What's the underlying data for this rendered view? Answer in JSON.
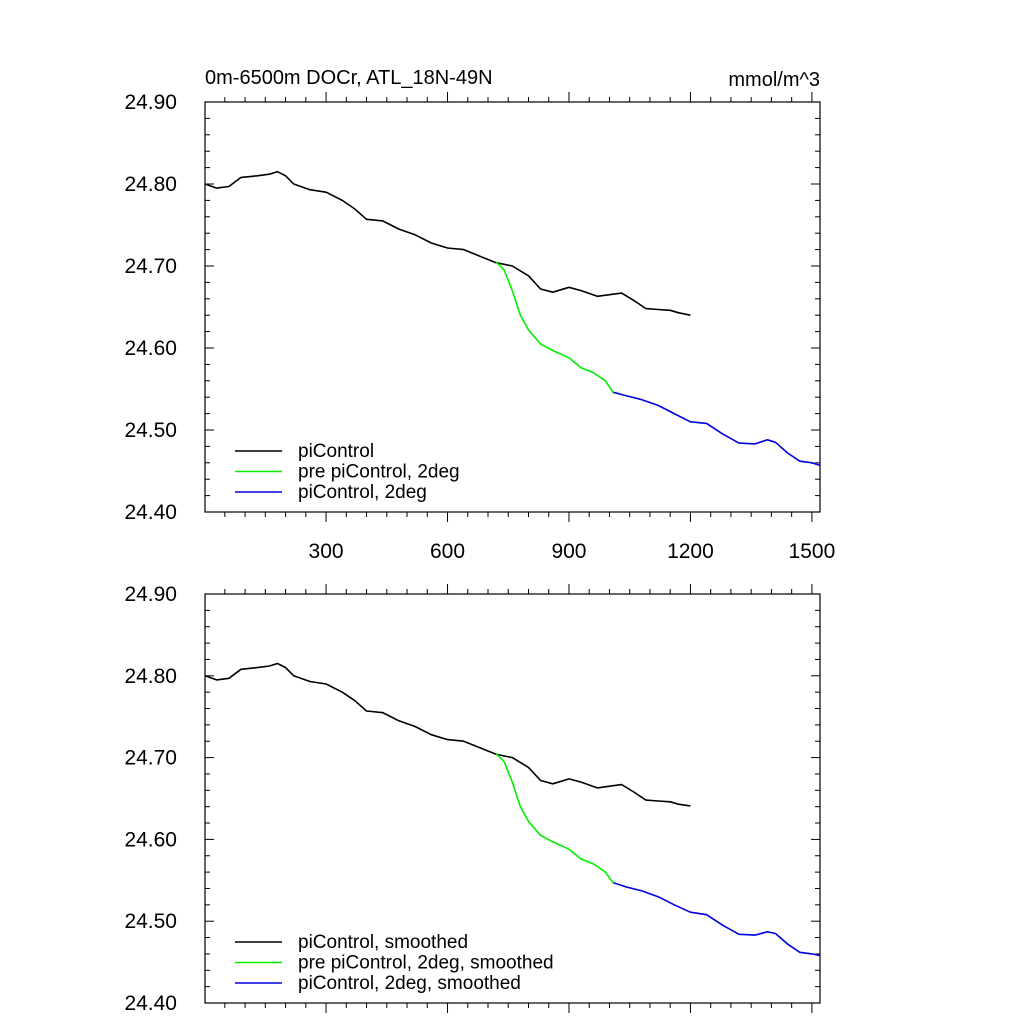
{
  "header": {
    "title": "0m-6500m DOCr, ATL_18N-49N",
    "units": "mmol/m^3"
  },
  "colors": {
    "piControl": "#000000",
    "pre_piControl_2deg": "#00ee00",
    "piControl_2deg": "#0000dd"
  },
  "chart_data": [
    {
      "type": "line",
      "title": "0m-6500m DOCr, ATL_18N-49N",
      "units_label": "mmol/m^3",
      "xlim": [
        1,
        1520
      ],
      "ylim": [
        24.4,
        24.9
      ],
      "x_ticks": [
        300,
        600,
        900,
        1200,
        1500
      ],
      "x_tick_labels": [
        "300",
        "600",
        "900",
        "1200",
        "1500"
      ],
      "y_ticks": [
        24.4,
        24.5,
        24.6,
        24.7,
        24.8,
        24.9
      ],
      "y_tick_labels": [
        "24.40",
        "24.50",
        "24.60",
        "24.70",
        "24.80",
        "24.90"
      ],
      "legend": {
        "placement": "bottom-left"
      },
      "series": [
        {
          "name": "piControl",
          "color_key": "piControl",
          "points": [
            [
              1,
              24.8
            ],
            [
              30,
              24.795
            ],
            [
              60,
              24.797
            ],
            [
              90,
              24.808
            ],
            [
              130,
              24.81
            ],
            [
              160,
              24.812
            ],
            [
              180,
              24.815
            ],
            [
              200,
              24.81
            ],
            [
              220,
              24.8
            ],
            [
              260,
              24.793
            ],
            [
              300,
              24.79
            ],
            [
              340,
              24.78
            ],
            [
              370,
              24.77
            ],
            [
              400,
              24.757
            ],
            [
              440,
              24.755
            ],
            [
              480,
              24.745
            ],
            [
              520,
              24.738
            ],
            [
              560,
              24.728
            ],
            [
              600,
              24.722
            ],
            [
              640,
              24.72
            ],
            [
              680,
              24.712
            ],
            [
              720,
              24.704
            ],
            [
              760,
              24.7
            ],
            [
              800,
              24.688
            ],
            [
              830,
              24.672
            ],
            [
              860,
              24.668
            ],
            [
              900,
              24.674
            ],
            [
              930,
              24.67
            ],
            [
              970,
              24.663
            ],
            [
              1000,
              24.665
            ],
            [
              1030,
              24.667
            ],
            [
              1060,
              24.658
            ],
            [
              1090,
              24.648
            ],
            [
              1120,
              24.647
            ],
            [
              1150,
              24.646
            ],
            [
              1170,
              24.643
            ],
            [
              1200,
              24.64
            ]
          ]
        },
        {
          "name": "pre piControl, 2deg",
          "color_key": "pre_piControl_2deg",
          "points": [
            [
              720,
              24.705
            ],
            [
              740,
              24.695
            ],
            [
              760,
              24.67
            ],
            [
              780,
              24.64
            ],
            [
              800,
              24.622
            ],
            [
              830,
              24.605
            ],
            [
              860,
              24.597
            ],
            [
              900,
              24.588
            ],
            [
              930,
              24.576
            ],
            [
              960,
              24.57
            ],
            [
              990,
              24.56
            ],
            [
              1010,
              24.545
            ]
          ]
        },
        {
          "name": "piControl, 2deg",
          "color_key": "piControl_2deg",
          "points": [
            [
              1010,
              24.546
            ],
            [
              1040,
              24.542
            ],
            [
              1080,
              24.537
            ],
            [
              1120,
              24.53
            ],
            [
              1160,
              24.52
            ],
            [
              1200,
              24.51
            ],
            [
              1240,
              24.508
            ],
            [
              1280,
              24.495
            ],
            [
              1320,
              24.484
            ],
            [
              1360,
              24.483
            ],
            [
              1390,
              24.488
            ],
            [
              1410,
              24.485
            ],
            [
              1440,
              24.472
            ],
            [
              1470,
              24.462
            ],
            [
              1500,
              24.46
            ],
            [
              1520,
              24.457
            ]
          ]
        }
      ]
    },
    {
      "type": "line",
      "title": "",
      "xlim": [
        1,
        1520
      ],
      "ylim": [
        24.4,
        24.9
      ],
      "x_ticks": [
        300,
        600,
        900,
        1200,
        1500
      ],
      "x_tick_labels": [],
      "y_ticks": [
        24.4,
        24.5,
        24.6,
        24.7,
        24.8,
        24.9
      ],
      "y_tick_labels": [
        "24.40",
        "24.50",
        "24.60",
        "24.70",
        "24.80",
        "24.90"
      ],
      "legend": {
        "placement": "bottom-left"
      },
      "series": [
        {
          "name": "piControl, smoothed",
          "color_key": "piControl",
          "points": [
            [
              1,
              24.8
            ],
            [
              30,
              24.795
            ],
            [
              60,
              24.797
            ],
            [
              90,
              24.808
            ],
            [
              130,
              24.81
            ],
            [
              160,
              24.812
            ],
            [
              180,
              24.815
            ],
            [
              200,
              24.81
            ],
            [
              220,
              24.8
            ],
            [
              260,
              24.793
            ],
            [
              300,
              24.79
            ],
            [
              340,
              24.78
            ],
            [
              370,
              24.77
            ],
            [
              400,
              24.757
            ],
            [
              440,
              24.755
            ],
            [
              480,
              24.745
            ],
            [
              520,
              24.738
            ],
            [
              560,
              24.728
            ],
            [
              600,
              24.722
            ],
            [
              640,
              24.72
            ],
            [
              680,
              24.712
            ],
            [
              720,
              24.704
            ],
            [
              760,
              24.7
            ],
            [
              800,
              24.688
            ],
            [
              830,
              24.672
            ],
            [
              860,
              24.668
            ],
            [
              900,
              24.674
            ],
            [
              930,
              24.67
            ],
            [
              970,
              24.663
            ],
            [
              1000,
              24.665
            ],
            [
              1030,
              24.667
            ],
            [
              1060,
              24.658
            ],
            [
              1090,
              24.648
            ],
            [
              1120,
              24.647
            ],
            [
              1150,
              24.646
            ],
            [
              1170,
              24.643
            ],
            [
              1200,
              24.641
            ]
          ]
        },
        {
          "name": "pre piControl, 2deg, smoothed",
          "color_key": "pre_piControl_2deg",
          "points": [
            [
              720,
              24.705
            ],
            [
              740,
              24.695
            ],
            [
              760,
              24.67
            ],
            [
              780,
              24.64
            ],
            [
              800,
              24.622
            ],
            [
              830,
              24.605
            ],
            [
              860,
              24.597
            ],
            [
              900,
              24.588
            ],
            [
              930,
              24.576
            ],
            [
              960,
              24.57
            ],
            [
              990,
              24.56
            ],
            [
              1010,
              24.546
            ]
          ]
        },
        {
          "name": "piControl, 2deg, smoothed",
          "color_key": "piControl_2deg",
          "points": [
            [
              1010,
              24.547
            ],
            [
              1040,
              24.542
            ],
            [
              1080,
              24.537
            ],
            [
              1120,
              24.53
            ],
            [
              1160,
              24.52
            ],
            [
              1200,
              24.511
            ],
            [
              1240,
              24.508
            ],
            [
              1280,
              24.495
            ],
            [
              1320,
              24.484
            ],
            [
              1360,
              24.483
            ],
            [
              1390,
              24.487
            ],
            [
              1410,
              24.485
            ],
            [
              1440,
              24.472
            ],
            [
              1470,
              24.462
            ],
            [
              1500,
              24.46
            ],
            [
              1520,
              24.458
            ]
          ]
        }
      ]
    }
  ]
}
